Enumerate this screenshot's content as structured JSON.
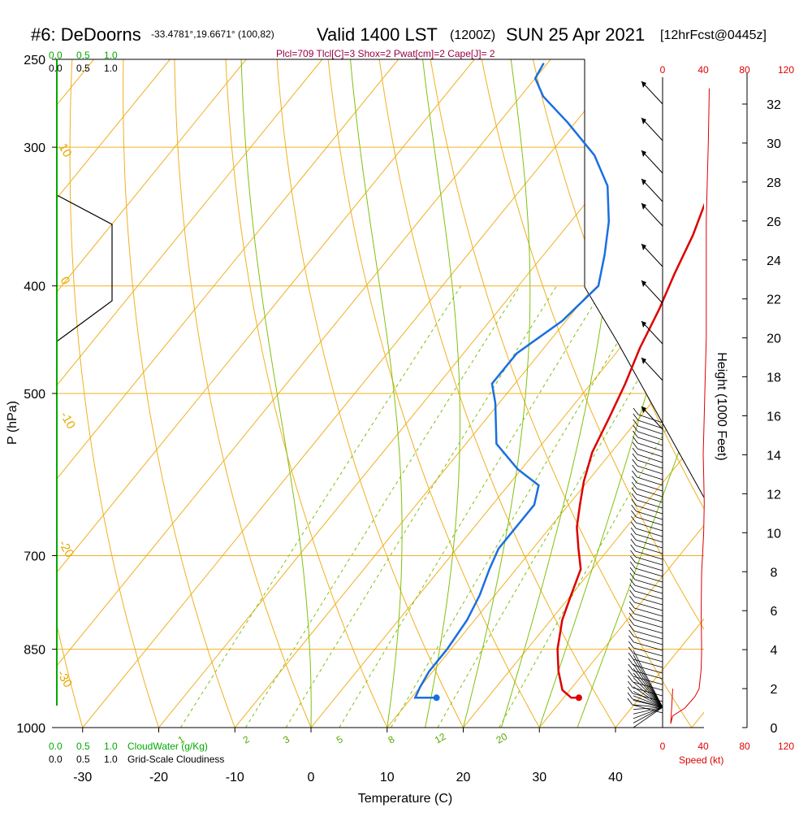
{
  "header": {
    "station": "#6: DeDoorns",
    "coords": "-33.4781°,19.6671° (100,82)",
    "valid_main": "Valid 1400 LST",
    "valid_z": "(1200Z)",
    "date": "SUN 25 Apr 2021",
    "forecast": "[12hrFcst@0445z]",
    "indices": "Plcl=709 Tlcl[C]=3 Shox=2 Pwat[cm]=2 Cape[J]= 2"
  },
  "scales": {
    "cloudwater_top": [
      "0.0",
      "0.5",
      "1.0"
    ],
    "cloudiness_top": [
      "0.0",
      "0.5",
      "1.0"
    ],
    "cloudwater_bottom": [
      "0.0",
      "0.5",
      "1.0"
    ],
    "cloudwater_label": "CloudWater (g/Kg)",
    "cloudiness_bottom": [
      "0.0",
      "0.5",
      "1.0"
    ],
    "cloudiness_label": "Grid-Scale Cloudiness"
  },
  "chart_data": {
    "type": "line",
    "subtype": "skew-T log-P sounding",
    "xlabel": "Temperature (C)",
    "ylabel": "P (hPa)",
    "right_axis_label": "Height (1000 Feet)",
    "speed_axis_label": "Speed (kt)",
    "x_ticks": [
      -30,
      -20,
      -10,
      0,
      10,
      20,
      30,
      40
    ],
    "p_ticks": [
      250,
      300,
      400,
      500,
      700,
      850,
      1000
    ],
    "height_ticks": [
      0,
      2,
      4,
      6,
      8,
      10,
      12,
      14,
      16,
      18,
      20,
      22,
      24,
      26,
      28,
      30,
      32
    ],
    "speed_ticks_top": [
      "0",
      "40",
      "80",
      "120"
    ],
    "speed_ticks_bottom": [
      "0",
      "40",
      "80",
      "120"
    ],
    "mixing_ratio_labels": [
      "1",
      "2",
      "3",
      "5",
      "8",
      "12",
      "20"
    ],
    "isotherm_labels": [
      "-10",
      "0",
      "10",
      "20",
      "30"
    ],
    "dry_adiabat_labels": [
      "10",
      "0",
      "-10",
      "-20",
      "-30"
    ],
    "x_range": [
      -34,
      50
    ],
    "p_range": [
      1000,
      250
    ],
    "series": [
      {
        "color": "#dd0000",
        "points": [
          [
            32,
            940
          ],
          [
            31,
            940
          ],
          [
            29,
            925
          ],
          [
            26.5,
            890
          ],
          [
            24,
            850
          ],
          [
            21.5,
            800
          ],
          [
            20,
            760
          ],
          [
            18.5,
            720
          ],
          [
            16,
            690
          ],
          [
            13.5,
            660
          ],
          [
            11.5,
            630
          ],
          [
            9.5,
            600
          ],
          [
            7.5,
            565
          ],
          [
            6,
            525
          ],
          [
            4.5,
            490
          ],
          [
            2.6,
            455
          ],
          [
            1,
            420
          ],
          [
            -0.8,
            390
          ],
          [
            -2.5,
            360
          ],
          [
            -4.5,
            335
          ],
          [
            -7,
            305
          ],
          [
            -11.5,
            280
          ],
          [
            -15.5,
            262
          ],
          [
            -18,
            255
          ]
        ]
      },
      {
        "color": "#1a6fe0",
        "points": [
          [
            13.3,
            940
          ],
          [
            10.5,
            940
          ],
          [
            10,
            920
          ],
          [
            9.5,
            890
          ],
          [
            9.5,
            850
          ],
          [
            9,
            800
          ],
          [
            8,
            760
          ],
          [
            6.5,
            720
          ],
          [
            5.5,
            690
          ],
          [
            5.5,
            660
          ],
          [
            5.5,
            630
          ],
          [
            4,
            605
          ],
          [
            -0.5,
            585
          ],
          [
            -6,
            555
          ],
          [
            -10.5,
            510
          ],
          [
            -13,
            490
          ],
          [
            -13,
            460
          ],
          [
            -10.5,
            430
          ],
          [
            -9.5,
            400
          ],
          [
            -12,
            375
          ],
          [
            -15,
            350
          ],
          [
            -19,
            325
          ],
          [
            -24,
            305
          ],
          [
            -31,
            285
          ],
          [
            -37,
            270
          ],
          [
            -40,
            260
          ],
          [
            -40.5,
            252
          ]
        ]
      }
    ],
    "surface_temp": 32,
    "surface_dewpoint": 13.3,
    "speed_profile_kt": [
      [
        10,
        2
      ],
      [
        8,
        0.2
      ],
      [
        10,
        0.6
      ],
      [
        22,
        1.0
      ],
      [
        32,
        1.6
      ],
      [
        36,
        2.0
      ],
      [
        38,
        3.0
      ],
      [
        38.5,
        4.0
      ],
      [
        38,
        6.0
      ],
      [
        38.5,
        8.0
      ],
      [
        39.5,
        9.0
      ],
      [
        40.5,
        10.0
      ],
      [
        41,
        11.5
      ],
      [
        40.5,
        13
      ],
      [
        40,
        14
      ],
      [
        41,
        16
      ],
      [
        42,
        18
      ],
      [
        43,
        20
      ],
      [
        43,
        22
      ],
      [
        43,
        24
      ],
      [
        43,
        26
      ],
      [
        44,
        28
      ],
      [
        45,
        30
      ],
      [
        46,
        32.8
      ]
    ]
  },
  "colors": {
    "temperature": "#dd0000",
    "dewpoint": "#1a6fe0",
    "isobar": "#f0b020",
    "isotherm": "#f0b020",
    "dry_adiabat": "#80c010",
    "mixing_ratio": "#80c010",
    "cloudwater_axis": "#00aa00"
  }
}
